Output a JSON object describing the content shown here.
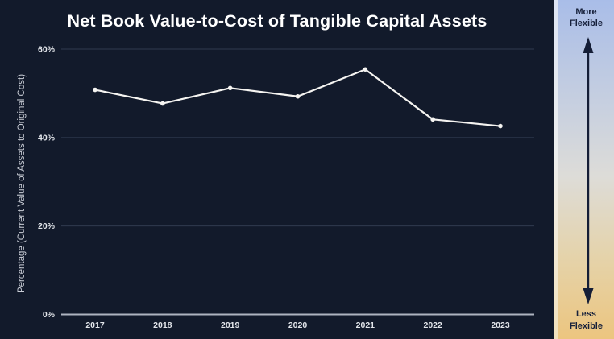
{
  "chart_data": {
    "type": "line",
    "title": "Net Book Value-to-Cost of Tangible Capital Assets",
    "categories": [
      "2017",
      "2018",
      "2019",
      "2020",
      "2021",
      "2022",
      "2023"
    ],
    "values": [
      50.8,
      47.7,
      51.2,
      49.3,
      55.4,
      44.1,
      42.6
    ],
    "xlabel": "",
    "ylabel": "Percentage (Current Value of Assets to Original Cost)",
    "ylim": [
      0,
      60
    ],
    "yticks": [
      0,
      20,
      40,
      60
    ],
    "ytick_labels": [
      "0%",
      "20%",
      "40%",
      "60%"
    ],
    "grid": true,
    "legend_position": "none",
    "line_color": "#f5f4f1",
    "marker": "point"
  },
  "colors": {
    "background": "#121a2b",
    "title_text": "#ffffff",
    "gridline": "#303a4f",
    "axis_line": "#aeb4c0",
    "tick_text": "#e3e6eb",
    "y_axis_title_text": "#c9cdd6"
  },
  "sidebar": {
    "top_label": "More Flexible",
    "bottom_label": "Less Flexible",
    "gradient_top": "#a9bde8",
    "gradient_upper_mid": "#c6cfe0",
    "gradient_mid": "#dddcd8",
    "gradient_lower_mid": "#e5d3aa",
    "gradient_bottom": "#ecc57f",
    "text_color": "#17213b",
    "arrow_color": "#141d36"
  }
}
